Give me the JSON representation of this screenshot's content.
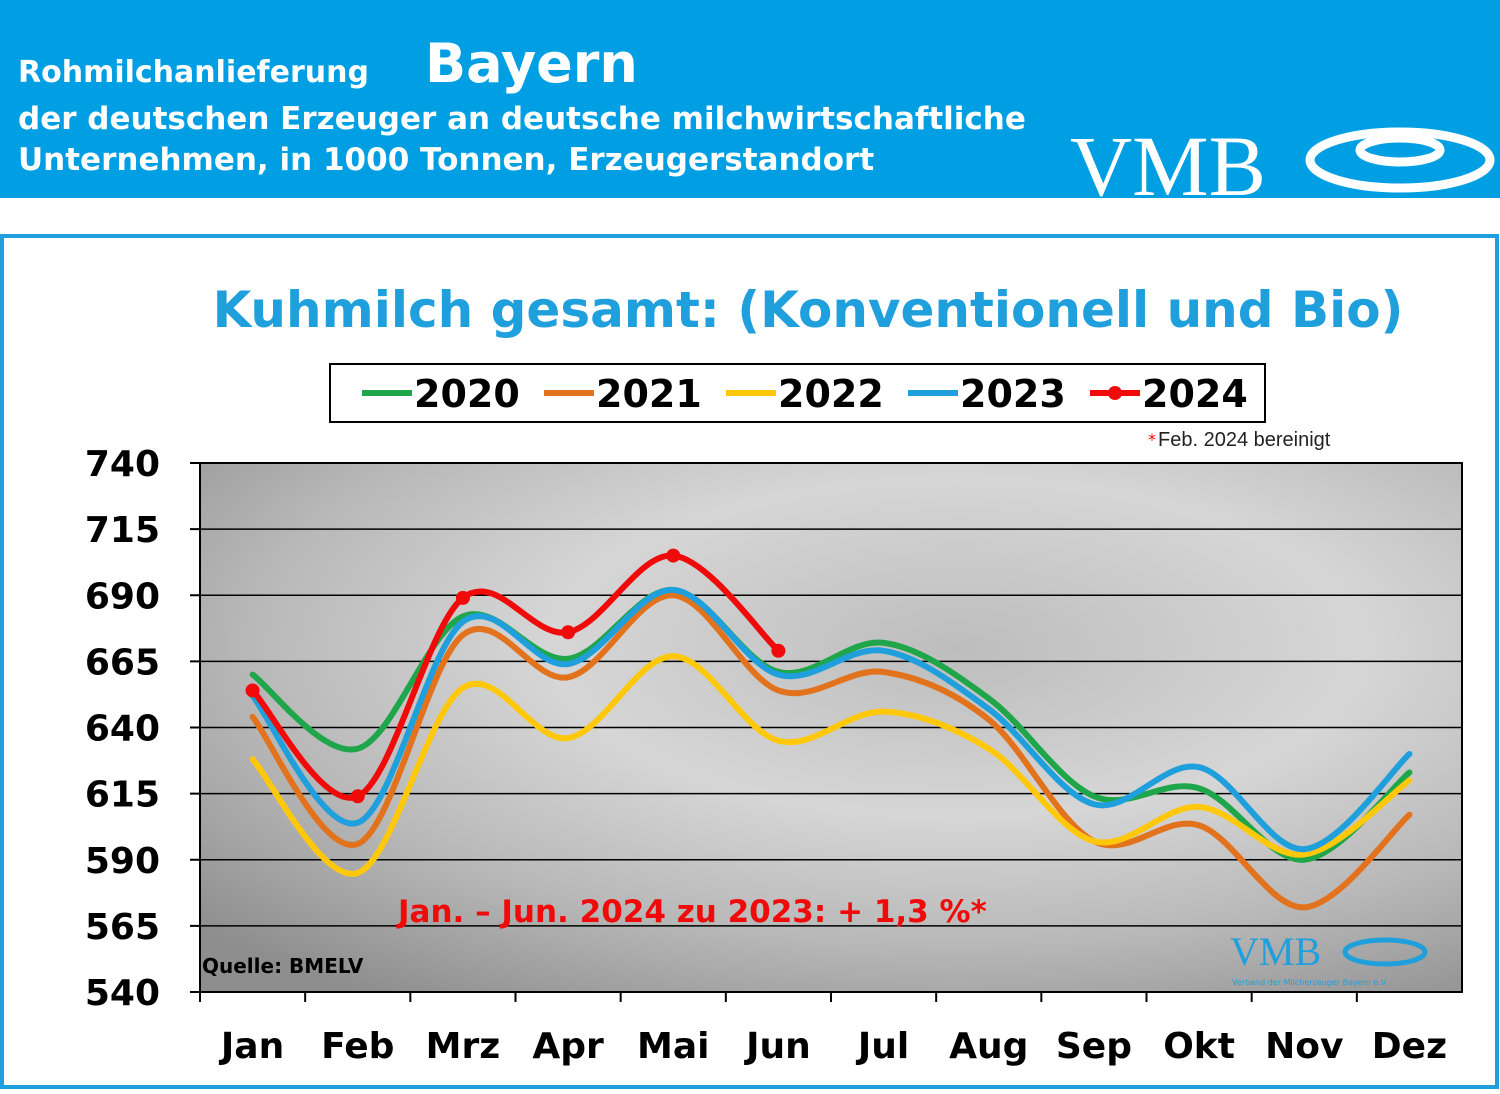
{
  "header": {
    "title_small": "Rohmilchanlieferung",
    "title_big": "Bayern",
    "subtitle_line1": "der deutschen Erzeuger an deutsche milchwirtschaftliche",
    "subtitle_line2": "Unternehmen, in 1000 Tonnen, Erzeugerstandort",
    "logo": "VMB"
  },
  "chart_data": {
    "type": "line",
    "title": "Kuhmilch gesamt: (Konventionell und Bio)",
    "footnote_mark": "*",
    "footnote": "Feb. 2024 bereinigt",
    "annotation": "Jan. – Jun. 2024 zu 2023: + 1,3 %*",
    "source": "Quelle: BMELV",
    "watermark": "VMB",
    "watermark_sub": "Verband der Milcherzeuger Bayern e.V.",
    "categories": [
      "Jan",
      "Feb",
      "Mrz",
      "Apr",
      "Mai",
      "Jun",
      "Jul",
      "Aug",
      "Sep",
      "Okt",
      "Nov",
      "Dez"
    ],
    "series": [
      {
        "name": "2020",
        "color": "#1fa64a",
        "values": [
          660,
          632,
          682,
          666,
          692,
          661,
          672,
          651,
          614,
          617,
          590,
          623
        ]
      },
      {
        "name": "2021",
        "color": "#e2721c",
        "values": [
          644,
          596,
          675,
          659,
          690,
          654,
          661,
          643,
          597,
          603,
          572,
          607
        ]
      },
      {
        "name": "2022",
        "color": "#ffc80a",
        "values": [
          628,
          585,
          655,
          636,
          667,
          635,
          646,
          632,
          597,
          610,
          592,
          620
        ]
      },
      {
        "name": "2023",
        "color": "#1f9fdc",
        "values": [
          652,
          604,
          680,
          664,
          692,
          660,
          669,
          647,
          611,
          625,
          594,
          630
        ]
      },
      {
        "name": "2024",
        "color": "#f00a0a",
        "markers": true,
        "values": [
          654,
          614,
          689,
          676,
          705,
          669,
          null,
          null,
          null,
          null,
          null,
          null
        ]
      }
    ],
    "ylim": [
      540,
      740
    ],
    "yticks": [
      540,
      565,
      590,
      615,
      640,
      665,
      690,
      715,
      740
    ],
    "grid": true
  }
}
